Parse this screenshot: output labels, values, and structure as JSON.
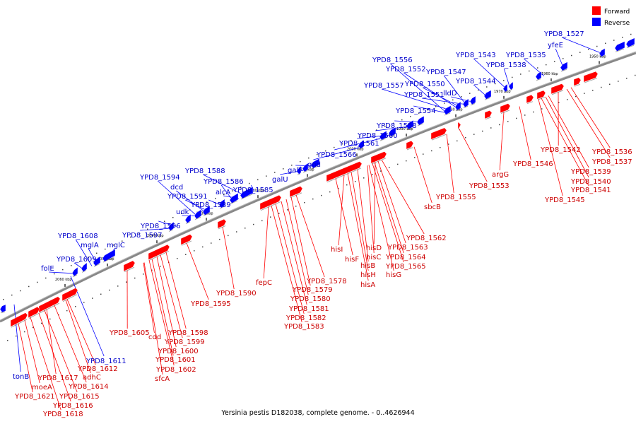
{
  "legend": [
    {
      "label": "Forward",
      "color": "#ff0000"
    },
    {
      "label": "Reverse",
      "color": "#0000ff"
    }
  ],
  "caption": "Yersinia pestis D182038, complete genome. - 0..4626944",
  "colors": {
    "forward": "#ff0000",
    "reverse": "#0000ff",
    "backbone": "#888888",
    "forward_line": "#ff0000",
    "reverse_line": "#0000ff"
  },
  "ticks": [
    "2060 kbp",
    "2050 kbp",
    "2040 kbp",
    "2030 kbp",
    "2020 kbp",
    "2010 kbp",
    "2000 kbp",
    "1990 kbp",
    "1980 kbp",
    "1970 kbp",
    "1960 kbp",
    "1950 kbp"
  ],
  "reverse_labels": [
    "YPD8_1527",
    "yfeE",
    "YPD8_1535",
    "YPD8_1538",
    "YPD8_1543",
    "YPD8_1544",
    "YPD8_1556",
    "YPD8_1552",
    "YPD8_1547",
    "YPD8_1557",
    "YPD8_1550",
    "YPD8_1551",
    "lldD",
    "YPD8_1554",
    "YPD8_1558",
    "YPD8_1560",
    "YPD8_1561",
    "YPD8_1566",
    "gnd",
    "galF",
    "galU",
    "YPD8_1588",
    "YPD8_1594",
    "YPD8_1586",
    "dcd",
    "alcA",
    "YPD8_1591",
    "YPD8_1585",
    "YPD8_1589",
    "udk",
    "YPD8_1596",
    "YPD8_1597",
    "YPD8_1608",
    "mglA",
    "mglC",
    "YPD8_1609",
    "folE",
    "YPD8_1611",
    "tonB"
  ],
  "forward_labels": [
    "YPD8_1542",
    "YPD8_1536",
    "YPD8_1537",
    "YPD8_1546",
    "YPD8_1539",
    "argG",
    "YPD8_1540",
    "YPD8_1553",
    "YPD8_1541",
    "YPD8_1555",
    "YPD8_1545",
    "sbcB",
    "YPD8_1562",
    "YPD8_1563",
    "hisD",
    "hisI",
    "hisC",
    "YPD8_1564",
    "hisF",
    "YPD8_1565",
    "hisB",
    "hisH",
    "hisG",
    "hisA",
    "YPD8_1578",
    "fepC",
    "YPD8_1579",
    "YPD8_1580",
    "YPD8_1581",
    "YPD8_1582",
    "YPD8_1583",
    "YPD8_1590",
    "YPD8_1595",
    "YPD8_1598",
    "YPD8_1605",
    "cdd",
    "YPD8_1599",
    "YPD8_1600",
    "YPD8_1601",
    "YPD8_1602",
    "sfcA",
    "YPD8_1612",
    "YPD8_1617",
    "adhC",
    "YPD8_1614",
    "moeA",
    "YPD8_1615",
    "YPD8_1621",
    "YPD8_1616",
    "YPD8_1618"
  ]
}
